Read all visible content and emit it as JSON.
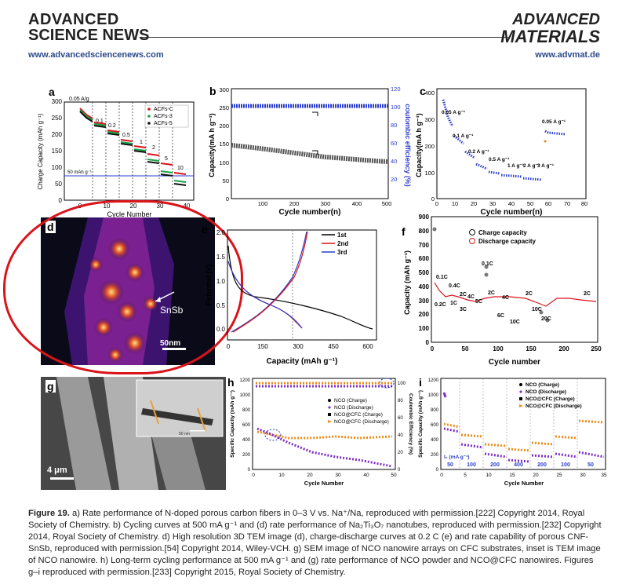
{
  "header": {
    "left_brand_top": "ADVANCED",
    "left_brand_bottom": "SCIENCE NEWS",
    "left_url": "www.advancedsciencenews.com",
    "right_brand_top": "ADVANCED",
    "right_brand_bottom": "MATERIALS",
    "right_url": "www.advmat.de"
  },
  "panels": {
    "a": {
      "letter": "a",
      "ylabel": "Charge Capacity (mAh g⁻¹)",
      "xlabel": "Cycle Number",
      "legend": [
        "ACFs-C",
        "ACFs-3",
        "ACFs-5"
      ],
      "rates": [
        "0.05 A/g",
        "0.1",
        "0.2",
        "0.5",
        "1",
        "2",
        "5",
        "10"
      ],
      "ref_line_label": "50 mAh g⁻¹",
      "xticks": [
        "0",
        "10",
        "20",
        "30",
        "40"
      ],
      "yticks": [
        "0",
        "50",
        "100",
        "150",
        "200",
        "250",
        "300"
      ]
    },
    "b": {
      "letter": "b",
      "ylabel": "Capacity(mA h g⁻¹)",
      "ylabel_right": "coulombic efficiency (%)",
      "xlabel": "Cycle number(n)",
      "xticks": [
        "100",
        "200",
        "300",
        "400",
        "500"
      ],
      "yticks": [
        "0",
        "50",
        "100",
        "150",
        "200",
        "250",
        "300"
      ],
      "yticks_right": [
        "20",
        "40",
        "60",
        "80",
        "100",
        "120"
      ]
    },
    "c": {
      "letter": "c",
      "ylabel": "Capacity(mA h g⁻¹)",
      "xlabel": "Cycle number(n)",
      "labels": [
        "0.05 A g⁻¹",
        "0.1 A g⁻¹",
        "0.2 A g⁻¹",
        "0.5 A g⁻¹",
        "1 A g⁻¹",
        "2 A g⁻¹",
        "3 A g⁻¹",
        "0.05 A g⁻¹"
      ],
      "xticks": [
        "0",
        "10",
        "20",
        "30",
        "40",
        "50",
        "60",
        "70",
        "80"
      ],
      "yticks": [
        "0",
        "100",
        "200",
        "300",
        "400"
      ]
    },
    "d": {
      "letter": "d",
      "label": "SnSb",
      "scale": "50nm"
    },
    "e": {
      "letter": "e",
      "ylabel": "Potential (V)",
      "xlabel": "Capacity (mAh g⁻¹)",
      "legend": [
        "1st",
        "2nd",
        "3rd"
      ],
      "xticks": [
        "0",
        "150",
        "300",
        "450",
        "600"
      ],
      "yticks": [
        "0.0",
        "0.5",
        "1.0",
        "1.5",
        "2.0"
      ]
    },
    "f": {
      "letter": "f",
      "ylabel": "Capacity (mAh g⁻¹)",
      "xlabel": "Cycle number",
      "legend": [
        "Charge capacity",
        "Discharge capacity"
      ],
      "rate_labels": [
        "0.1C",
        "0.2C",
        "0.4C",
        "1C",
        "2C",
        "3C",
        "4C",
        "5C",
        "0.1C",
        "2C",
        "4C",
        "6C",
        "10C",
        "2C",
        "10C",
        "20C",
        "2C"
      ],
      "xticks": [
        "0",
        "50",
        "100",
        "150",
        "200",
        "250"
      ],
      "yticks": [
        "0",
        "100",
        "200",
        "300",
        "400",
        "500",
        "600",
        "700",
        "800",
        "900"
      ]
    },
    "g": {
      "letter": "g",
      "scale": "4 μm",
      "inset_scale": "50 nm"
    },
    "h": {
      "letter": "h",
      "ylabel": "Specific Capacity (mAh g⁻¹)",
      "ylabel_right": "Coulombic Efficiency (%)",
      "xlabel": "Cycle Number",
      "legend": [
        "NCO (Charge)",
        "NCO (Discharge)",
        "NCO@CFC (Charge)",
        "NCO@CFC (Discharge)"
      ],
      "xticks": [
        "0",
        "10",
        "20",
        "30",
        "40",
        "50"
      ],
      "yticks": [
        "0",
        "200",
        "400",
        "600",
        "800",
        "1000",
        "1200"
      ],
      "yticks_right": [
        "0",
        "20",
        "40",
        "60",
        "80",
        "100"
      ]
    },
    "i": {
      "letter": "i",
      "ylabel": "Specific Capacity (mAh g⁻¹)",
      "xlabel": "Cycle Number",
      "legend": [
        "NCO (Charge)",
        "NCO (Discharge)",
        "NCO@CFC (Charge)",
        "NCO@CFC (Discharge)"
      ],
      "rate_title": "I₀ (mA g⁻¹)",
      "rates": [
        "50",
        "100",
        "200",
        "400",
        "200",
        "100",
        "50"
      ],
      "xticks": [
        "0",
        "5",
        "10",
        "15",
        "20",
        "25",
        "30",
        "35"
      ],
      "yticks": [
        "0",
        "200",
        "400",
        "600",
        "800",
        "1000",
        "1200"
      ]
    }
  },
  "caption": {
    "label": "Figure 19.",
    "text": "a) Rate performance of N-doped porous carbon fibers in 0–3 V vs. Na⁺/Na, reproduced with permission.[222] Copyright 2014, Royal Society of Chemistry. b) Cycling curves at 500 mA g⁻¹ and (d) rate performance of Na₂Ti₃O₇ nanotubes, reproduced with permission.[232] Copyright 2014, Royal Society of Chemistry. d) High resolution 3D TEM image (d), charge-discharge curves at 0.2 C (e) and rate capability of porous CNF-SnSb, reproduced with permission.[54] Copyright 2014, Wiley-VCH. g) SEM image of NCO nanowire arrays on CFC substrates, inset is TEM image of NCO nanowire. h) Long-term cycling performance at 500 mA g⁻¹ and (g) rate performance of NCO powder and NCO@CFC nanowires. Figures g–i reproduced with permission.[233] Copyright 2015, Royal Society of Chemistry."
  },
  "colors": {
    "red_annotation": "#d9141b",
    "blue": "#2b3ccc",
    "green": "#1aa34a",
    "purple": "#7d2ec9",
    "orange": "#f08c1a"
  }
}
